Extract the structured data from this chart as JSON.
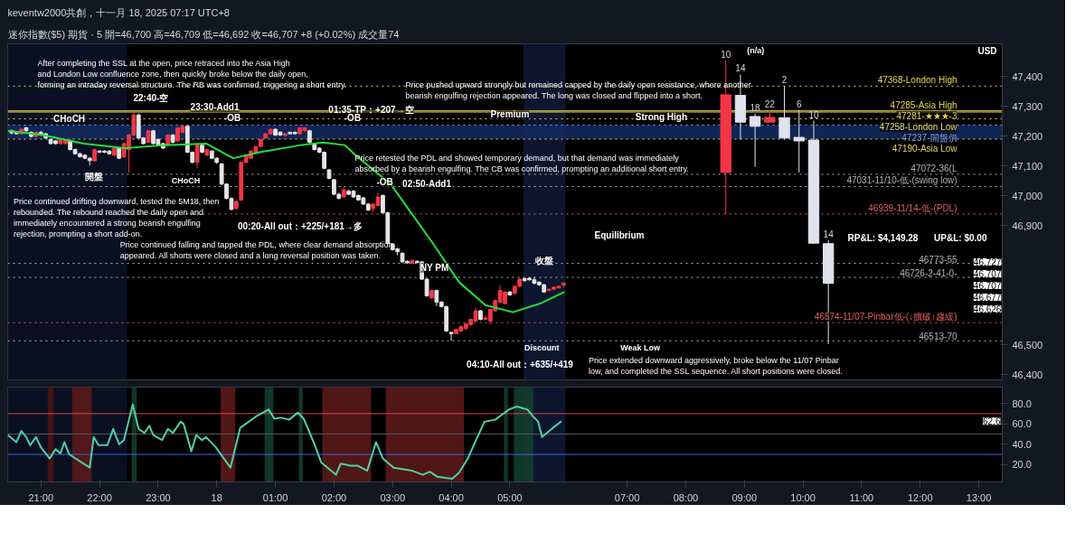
{
  "chart_data": [
    {
      "type": "candlestick",
      "title": "keventw2000共創，十一月 18, 2025 07:17 UTC+8",
      "subtitle": "迷你指數($5) 期貨 · 5  開=46,700 高=46,709 低=46,692 收=46,707 +8 (+0.02%) 成交量74",
      "xlim": [
        "2025-11-17T20:26",
        "2025-11-18T13:24"
      ],
      "ylim": [
        46382,
        47510
      ],
      "yticks": [
        {
          "value": 46400,
          "label": "46,400"
        },
        {
          "value": 46500,
          "label": "46,500"
        },
        {
          "value": 46900,
          "label": "46,900"
        },
        {
          "value": 47000,
          "label": "47,000"
        },
        {
          "value": 47100,
          "label": "47,100"
        },
        {
          "value": 47200,
          "label": "47,200"
        },
        {
          "value": 47300,
          "label": "47,300"
        },
        {
          "value": 47400,
          "label": "47,400"
        }
      ],
      "tick_labels": "y",
      "series": [
        {
          "type": "candlestick",
          "colors": [
            "#e6e6e6",
            "#e6e6e6",
            "#f23645",
            "#e6e6e6",
            "#e6e6e6",
            "#f23645",
            "#e6e6e6",
            "#e6e6e6",
            "#e6e6e6",
            "#e6e6e6",
            "#f23645",
            "#f23645",
            "#e6e6e6",
            "#e6e6e6",
            "#e6e6e6",
            "#e6e6e6",
            "#e6e6e6",
            "#f23645",
            "#e6e6e6",
            "#e6e6e6",
            "#e6e6e6",
            "#f23645",
            "#e6e6e6",
            "#f23645",
            "#f23645",
            "#f23645",
            "#e6e6e6",
            "#e6e6e6",
            "#f23645",
            "#e6e6e6",
            "#e6e6e6",
            "#e6e6e6",
            "#f23645",
            "#e6e6e6",
            "#f23645",
            "#f23645",
            "#e6e6e6",
            "#e6e6e6",
            "#f23645",
            "#e6e6e6",
            "#f23645",
            "#e6e6e6",
            "#e6e6e6",
            "#e6e6e6",
            "#e6e6e6",
            "#e6e6e6",
            "#f23645",
            "#f23645",
            "#f23645",
            "#f23645",
            "#f23645",
            "#f23645",
            "#f23645",
            "#f23645",
            "#e6e6e6",
            "#e6e6e6",
            "#f23645",
            "#e6e6e6",
            "#e6e6e6",
            "#f23645",
            "#f23645",
            "#e6e6e6",
            "#e6e6e6",
            "#e6e6e6",
            "#e6e6e6",
            "#e6e6e6",
            "#e6e6e6",
            "#e6e6e6",
            "#f23645",
            "#e6e6e6",
            "#e6e6e6",
            "#e6e6e6",
            "#e6e6e6",
            "#e6e6e6",
            "#f23645",
            "#f23645",
            "#e6e6e6",
            "#e6e6e6",
            "#e6e6e6",
            "#e6e6e6",
            "#e6e6e6",
            "#e6e6e6",
            "#f23645",
            "#e6e6e6",
            "#e6e6e6",
            "#e6e6e6",
            "#f23645",
            "#e6e6e6",
            "#e6e6e6",
            "#e6e6e6",
            "#e6e6e6",
            "#f23645",
            "#f23645",
            "#f23645",
            "#f23645",
            "#f23645",
            "#e6e6e6",
            "#f23645",
            "#f23645",
            "#f23645",
            "#f23645",
            "#f23645",
            "#e6e6e6",
            "#f23645",
            "#f23645",
            "#e6e6e6",
            "#e6e6e6",
            "#e6e6e6",
            "#e6e6e6",
            "#e6e6e6",
            "#f23645",
            "#f23645",
            "#f23645",
            "#f23645"
          ],
          "x": [
            "2025-11-17T20:30",
            "2025-11-17T20:35",
            "2025-11-17T20:40",
            "2025-11-17T20:45",
            "2025-11-17T20:50",
            "2025-11-17T20:55",
            "2025-11-17T21:00",
            "2025-11-17T21:05",
            "2025-11-17T21:10",
            "2025-11-17T21:15",
            "2025-11-17T21:20",
            "2025-11-17T21:25",
            "2025-11-17T21:30",
            "2025-11-17T21:35",
            "2025-11-17T21:40",
            "2025-11-17T21:45",
            "2025-11-17T21:50",
            "2025-11-17T21:55",
            "2025-11-17T22:00",
            "2025-11-17T22:05",
            "2025-11-17T22:10",
            "2025-11-17T22:15",
            "2025-11-17T22:20",
            "2025-11-17T22:25",
            "2025-11-17T22:30",
            "2025-11-17T22:35",
            "2025-11-17T22:40",
            "2025-11-17T22:45",
            "2025-11-17T22:50",
            "2025-11-17T22:55",
            "2025-11-17T23:00",
            "2025-11-17T23:05",
            "2025-11-17T23:10",
            "2025-11-17T23:15",
            "2025-11-17T23:20",
            "2025-11-17T23:25",
            "2025-11-17T23:30",
            "2025-11-17T23:35",
            "2025-11-17T23:40",
            "2025-11-17T23:45",
            "2025-11-17T23:50",
            "2025-11-17T23:55",
            "2025-11-18T00:00",
            "2025-11-18T00:05",
            "2025-11-18T00:10",
            "2025-11-18T00:15",
            "2025-11-18T00:20",
            "2025-11-18T00:25",
            "2025-11-18T00:30",
            "2025-11-18T00:35",
            "2025-11-18T00:40",
            "2025-11-18T00:45",
            "2025-11-18T00:50",
            "2025-11-18T00:55",
            "2025-11-18T01:00",
            "2025-11-18T01:05",
            "2025-11-18T01:10",
            "2025-11-18T01:15",
            "2025-11-18T01:20",
            "2025-11-18T01:25",
            "2025-11-18T01:30",
            "2025-11-18T01:35",
            "2025-11-18T01:40",
            "2025-11-18T01:45",
            "2025-11-18T01:50",
            "2025-11-18T01:55",
            "2025-11-18T02:00",
            "2025-11-18T02:05",
            "2025-11-18T02:10",
            "2025-11-18T02:15",
            "2025-11-18T02:20",
            "2025-11-18T02:25",
            "2025-11-18T02:30",
            "2025-11-18T02:35",
            "2025-11-18T02:40",
            "2025-11-18T02:45",
            "2025-11-18T02:50",
            "2025-11-18T02:55",
            "2025-11-18T03:00",
            "2025-11-18T03:05",
            "2025-11-18T03:10",
            "2025-11-18T03:15",
            "2025-11-18T03:20",
            "2025-11-18T03:25",
            "2025-11-18T03:30",
            "2025-11-18T03:35",
            "2025-11-18T03:40",
            "2025-11-18T03:45",
            "2025-11-18T03:50",
            "2025-11-18T03:55",
            "2025-11-18T04:00",
            "2025-11-18T04:05",
            "2025-11-18T04:10",
            "2025-11-18T04:15",
            "2025-11-18T04:20",
            "2025-11-18T04:25",
            "2025-11-18T04:30",
            "2025-11-18T04:35",
            "2025-11-18T04:40",
            "2025-11-18T04:45",
            "2025-11-18T04:50",
            "2025-11-18T04:55",
            "2025-11-18T05:00",
            "2025-11-18T05:05",
            "2025-11-18T05:10",
            "2025-11-18T05:15",
            "2025-11-18T05:20",
            "2025-11-18T05:25",
            "2025-11-18T05:30",
            "2025-11-18T05:35",
            "2025-11-18T05:40",
            "2025-11-18T05:45",
            "2025-11-18T05:50",
            "2025-11-18T05:55"
          ],
          "ohlc": [
            [
              47218,
              47223,
              47206,
              47211
            ],
            [
              47213,
              47216,
              47205,
              47208
            ],
            [
              47208,
              47226,
              47205,
              47223
            ],
            [
              47228,
              47231,
              47215,
              47218
            ],
            [
              47213,
              47216,
              47196,
              47199
            ],
            [
              47199,
              47216,
              47196,
              47213
            ],
            [
              47213,
              47218,
              47201,
              47204
            ],
            [
              47208,
              47211,
              47191,
              47194
            ],
            [
              47189,
              47192,
              47172,
              47175
            ],
            [
              47184,
              47187,
              47172,
              47175
            ],
            [
              47175,
              47192,
              47172,
              47189
            ],
            [
              47175,
              47189,
              47172,
              47186
            ],
            [
              47186,
              47189,
              47152,
              47155
            ],
            [
              47155,
              47158,
              47138,
              47141
            ],
            [
              47141,
              47144,
              47128,
              47131
            ],
            [
              47136,
              47139,
              47123,
              47126
            ],
            [
              47126,
              47129,
              47102,
              47118
            ],
            [
              47117,
              47158,
              47114,
              47155
            ],
            [
              47150,
              47153,
              47143,
              47146
            ],
            [
              47150,
              47153,
              47143,
              47146
            ],
            [
              47150,
              47153,
              47138,
              47141
            ],
            [
              47136,
              47163,
              47133,
              47160
            ],
            [
              47160,
              47163,
              47123,
              47126
            ],
            [
              47131,
              47178,
              47128,
              47175
            ],
            [
              47155,
              47207,
              47078,
              47204
            ],
            [
              47204,
              47281,
              47201,
              47271
            ],
            [
              47271,
              47276,
              47191,
              47194
            ],
            [
              47194,
              47197,
              47172,
              47175
            ],
            [
              47179,
              47221,
              47176,
              47218
            ],
            [
              47218,
              47221,
              47172,
              47175
            ],
            [
              47189,
              47192,
              47167,
              47170
            ],
            [
              47175,
              47178,
              47157,
              47160
            ],
            [
              47170,
              47207,
              47167,
              47204
            ],
            [
              47204,
              47207,
              47176,
              47179
            ],
            [
              47184,
              47231,
              47181,
              47228
            ],
            [
              47213,
              47236,
              47210,
              47233
            ],
            [
              47233,
              47236,
              47143,
              47146
            ],
            [
              47146,
              47149,
              47109,
              47112
            ],
            [
              47112,
              47173,
              47092,
              47170
            ],
            [
              47170,
              47173,
              47143,
              47146
            ],
            [
              47136,
              47158,
              47133,
              47155
            ],
            [
              47150,
              47153,
              47123,
              47126
            ],
            [
              47126,
              47129,
              47107,
              47112
            ],
            [
              47107,
              47110,
              47036,
              47039
            ],
            [
              47039,
              47042,
              46988,
              46991
            ],
            [
              46991,
              46994,
              46951,
              46954
            ],
            [
              46957,
              46984,
              46954,
              46981
            ],
            [
              46986,
              47115,
              46983,
              47112
            ],
            [
              47112,
              47139,
              47109,
              47136
            ],
            [
              47126,
              47153,
              47123,
              47150
            ],
            [
              47146,
              47168,
              47143,
              47165
            ],
            [
              47165,
              47192,
              47162,
              47189
            ],
            [
              47194,
              47211,
              47191,
              47208
            ],
            [
              47208,
              47226,
              47205,
              47223
            ],
            [
              47223,
              47226,
              47201,
              47204
            ],
            [
              47213,
              47216,
              47201,
              47204
            ],
            [
              47202,
              47211,
              47199,
              47208
            ],
            [
              47213,
              47216,
              47205,
              47208
            ],
            [
              47213,
              47216,
              47205,
              47208
            ],
            [
              47208,
              47231,
              47205,
              47228
            ],
            [
              47218,
              47231,
              47215,
              47228
            ],
            [
              47218,
              47221,
              47176,
              47179
            ],
            [
              47175,
              47178,
              47152,
              47155
            ],
            [
              47160,
              47163,
              47143,
              47146
            ],
            [
              47146,
              47149,
              47089,
              47092
            ],
            [
              47087,
              47090,
              47055,
              47058
            ],
            [
              47054,
              47057,
              47002,
              47005
            ],
            [
              47005,
              47010,
              46988,
              46991
            ],
            [
              46996,
              47030,
              46993,
              47020
            ],
            [
              47015,
              47020,
              47002,
              47005
            ],
            [
              47015,
              47020,
              46993,
              46996
            ],
            [
              47001,
              47004,
              46983,
              46986
            ],
            [
              46993,
              46996,
              46969,
              46972
            ],
            [
              46972,
              46975,
              46949,
              46952
            ],
            [
              46957,
              46975,
              46945,
              46972
            ],
            [
              46967,
              47010,
              46964,
              46996
            ],
            [
              47001,
              47004,
              46940,
              46943
            ],
            [
              46943,
              46946,
              46838,
              46841
            ],
            [
              46838,
              46841,
              46816,
              46819
            ],
            [
              46822,
              46825,
              46800,
              46812
            ],
            [
              46807,
              46810,
              46775,
              46778
            ],
            [
              46780,
              46783,
              46772,
              46775
            ],
            [
              46773,
              46786,
              46770,
              46783
            ],
            [
              46780,
              46783,
              46773,
              46776
            ],
            [
              46778,
              46781,
              46717,
              46720
            ],
            [
              46720,
              46723,
              46661,
              46664
            ],
            [
              46657,
              46685,
              46654,
              46682
            ],
            [
              46682,
              46685,
              46630,
              46643
            ],
            [
              46643,
              46646,
              46625,
              46628
            ],
            [
              46628,
              46631,
              46543,
              46546
            ],
            [
              46541,
              46544,
              46513,
              46537
            ],
            [
              46537,
              46554,
              46534,
              46551
            ],
            [
              46546,
              46564,
              46543,
              46561
            ],
            [
              46554,
              46573,
              46551,
              46570
            ],
            [
              46567,
              46588,
              46564,
              46585
            ],
            [
              46580,
              46625,
              46577,
              46614
            ],
            [
              46614,
              46617,
              46582,
              46585
            ],
            [
              46585,
              46598,
              46582,
              46590
            ],
            [
              46580,
              46622,
              46570,
              46619
            ],
            [
              46614,
              46651,
              46611,
              46648
            ],
            [
              46643,
              46700,
              46640,
              46682
            ],
            [
              46638,
              46680,
              46635,
              46677
            ],
            [
              46677,
              46680,
              46664,
              46667
            ],
            [
              46672,
              46699,
              46669,
              46696
            ],
            [
              46696,
              46723,
              46693,
              46720
            ],
            [
              46722,
              46725,
              46712,
              46715
            ],
            [
              46723,
              46726,
              46715,
              46718
            ],
            [
              46718,
              46727,
              46703,
              46706
            ],
            [
              46710,
              46713,
              46698,
              46701
            ],
            [
              46701,
              46704,
              46674,
              46677
            ],
            [
              46682,
              46689,
              46679,
              46686
            ],
            [
              46686,
              46696,
              46683,
              46693
            ],
            [
              46691,
              46699,
              46688,
              46696
            ],
            [
              46700,
              46709,
              46692,
              46707
            ]
          ]
        },
        {
          "type": "candlestick",
          "colors": [
            "#f23645",
            "#dfe3ee",
            "#dfe3ee",
            "#f23645",
            "#dfe3ee",
            "#dfe3ee",
            "#dfe3ee",
            "#dfe3ee"
          ],
          "x": [
            "2025-11-18T08:41",
            "2025-11-18T08:56",
            "2025-11-18T09:11",
            "2025-11-18T09:26",
            "2025-11-18T09:41",
            "2025-11-18T09:56",
            "2025-11-18T10:11",
            "2025-11-18T10:26"
          ],
          "ohlc": [
            [
              47078,
              47455,
              46938,
              47339
            ],
            [
              47337,
              47407,
              47189,
              47247
            ],
            [
              47266,
              47275,
              47097,
              47233
            ],
            [
              47247,
              47286,
              47247,
              47263
            ],
            [
              47262,
              47368,
              47189,
              47194
            ],
            [
              47196,
              47286,
              47078,
              47184
            ],
            [
              47187,
              47252,
              46838,
              46841
            ],
            [
              46839,
              46851,
              46502,
              46706
            ]
          ],
          "value_labels": [
            "10",
            "14",
            "18",
            "22",
            "2",
            "6",
            "10",
            "14"
          ]
        },
        {
          "type": "line",
          "color": "#22e03a",
          "x": [
            "2025-11-17T20:26",
            "2025-11-17T21:02",
            "2025-11-17T21:44",
            "2025-11-17T22:26",
            "2025-11-17T23:07",
            "2025-11-17T23:49",
            "2025-11-18T00:17",
            "2025-11-18T00:44",
            "2025-11-18T01:26",
            "2025-11-18T01:49",
            "2025-11-18T02:11",
            "2025-11-18T02:22",
            "2025-11-18T02:58",
            "2025-11-18T03:40",
            "2025-11-18T04:08",
            "2025-11-18T04:35",
            "2025-11-18T05:03",
            "2025-11-18T05:31",
            "2025-11-18T05:56"
          ],
          "values": [
            47218,
            47204,
            47175,
            47160,
            47170,
            47175,
            47126,
            47146,
            47170,
            47179,
            47170,
            47136,
            47039,
            46846,
            46710,
            46633,
            46609,
            46638,
            46677
          ]
        }
      ],
      "bands": [
        {
          "axis": "x",
          "from": "2025-11-17T20:26",
          "to": "2025-11-17T22:28",
          "color": "#0b1226"
        },
        {
          "axis": "x",
          "from": "2025-11-18T05:14",
          "to": "2025-11-18T05:57",
          "color": "#0e1833"
        },
        {
          "axis": "y",
          "from": 47190,
          "to": 47237,
          "color": "#13295e"
        }
      ],
      "ref_lines": [
        {
          "axis": "y",
          "value": 47368,
          "label": "47368-London High",
          "color": "#e8d44d",
          "line_style": "dotted"
        },
        {
          "axis": "y",
          "value": 47285,
          "label": "47285-Asia High",
          "color": "#e8d44d",
          "line_style": "solid"
        },
        {
          "axis": "y",
          "value": 47281,
          "label": "47281-★★★-3",
          "color": "#e8d44d",
          "line_style": "solid"
        },
        {
          "axis": "y",
          "value": 47258,
          "label": "47258-London Low",
          "color": "#e8d44d",
          "line_style": "dotted"
        },
        {
          "axis": "y",
          "value": 47237,
          "label": "47237-開盤價",
          "color": "#7fa6ff",
          "line_style": "dotted"
        },
        {
          "axis": "y",
          "value": 47190,
          "label": "47190-Asia Low",
          "color": "#e8d44d",
          "line_style": "dotted"
        },
        {
          "axis": "y",
          "value": 47072,
          "label": "47072-36(L",
          "color": "#b0b4bc",
          "line_style": "dotted"
        },
        {
          "axis": "y",
          "value": 47031,
          "label": "47031-11/10-低-(swing low)",
          "color": "#b0b4bc",
          "line_style": "dotted"
        },
        {
          "axis": "y",
          "value": 46939,
          "label": "46939-11/14-低-(PDL)",
          "color": "#e0605c",
          "line_style": "dotted"
        },
        {
          "axis": "y",
          "value": 46773,
          "label": "46773-55",
          "color": "#b0b4bc",
          "line_style": "dotted"
        },
        {
          "axis": "y",
          "value": 46726,
          "label": "46726-2-41-0-",
          "color": "#b0b4bc",
          "line_style": "dotted"
        },
        {
          "axis": "y",
          "value": 46574,
          "label": "46574-11/07-Pinbar低-(↓擴破↑趨緩)",
          "color": "#e0605c",
          "line_style": "dotted"
        },
        {
          "axis": "y",
          "value": 46513,
          "label": "46513-70",
          "color": "#b0b4bc",
          "line_style": "dotted"
        }
      ],
      "annotations": [
        "After completing the SSL at the open, price retraced into the Asia High\nand London Low confluence zone, then quickly broke below the daily open,\nforming an intraday reversal structure. The RB was confirmed, triggering a short entry.",
        "Price pushed upward strongly but remained capped by the daily open resistance, where another\nbearish engulfing rejection appeared. The long was closed and flipped into a short.",
        "Price retested the PDL and showed temporary demand, but that demand was immediately\nabsorbed by a bearish engulfing. The CB was confirmed, prompting an additional short entry.",
        "Price continued drifting downward, tested the 5M18, then\nrebounded. The rebound reached the daily open and\nimmediately encountered a strong bearish engulfing\nrejection, prompting a short add-on.",
        "Price continued falling and tapped the PDL, where clear demand absorption\nappeared. All shorts were closed and a long reversal position was taken.",
        "Price extended downward aggressively, broke below the 11/07 Pinbar\nlow, and completed the SSL sequence. All short positions were closed.",
        "22:40-空",
        {
          "text": "23:30-Add1",
          "x": "2025-11-17T23:58",
          "y": 47298
        },
        {
          "text": "01:35-TP：+207→空",
          "x": "2025-11-18T02:38",
          "y": 47290
        },
        {
          "text": "02:50-Add1",
          "x": "2025-11-18T03:35",
          "y": 47040
        },
        "00:20-All out：+225/+181→多",
        "04:10-All out：+635/+419",
        {
          "text": "開盤",
          "x": "2025-11-17T21:54",
          "y": 47064
        },
        {
          "text": "收盤",
          "x": "2025-11-18T05:35",
          "y": 46782
        },
        {
          "text": "CHoCH",
          "x": "2025-11-17T21:29",
          "y": 47258
        },
        "CHoCH",
        {
          "text": "-OB",
          "x": "2025-11-18T00:16",
          "y": 47261
        },
        {
          "text": "-OB",
          "x": "2025-11-18T02:19",
          "y": 47261
        },
        {
          "text": "-OB",
          "x": "2025-11-18T02:52",
          "y": 47046
        },
        {
          "text": "Premium",
          "x": "2025-11-18T05:00",
          "y": 47272
        },
        {
          "text": "Strong High",
          "x": "2025-11-18T07:35",
          "y": 47264
        },
        "Equilibrium",
        "Discount",
        "Weak Low",
        {
          "text": "NY PM",
          "x": "2025-11-18T03:43",
          "y": 46759
        },
        "(n/a)",
        "RP&L: $4,149.28",
        "UP&L: $0.00",
        "USD",
        "46,727",
        "46,707",
        "46,707",
        "46,677",
        "46,626"
      ]
    },
    {
      "type": "line",
      "xlim": [
        "2025-11-17T20:26",
        "2025-11-18T13:24"
      ],
      "ylim": [
        3,
        96
      ],
      "xticks": [
        {
          "value": "2025-11-17T21:00",
          "label": "21:00"
        },
        {
          "value": "2025-11-17T22:00",
          "label": "22:00"
        },
        {
          "value": "2025-11-17T23:00",
          "label": "23:00"
        },
        {
          "value": "2025-11-18T00:00",
          "label": "18"
        },
        {
          "value": "2025-11-18T01:00",
          "label": "01:00"
        },
        {
          "value": "2025-11-18T02:00",
          "label": "02:00"
        },
        {
          "value": "2025-11-18T03:00",
          "label": "03:00"
        },
        {
          "value": "2025-11-18T04:00",
          "label": "04:00"
        },
        {
          "value": "2025-11-18T05:00",
          "label": "05:00"
        },
        {
          "value": "2025-11-18T07:00",
          "label": "07:00"
        },
        {
          "value": "2025-11-18T08:00",
          "label": "08:00"
        },
        {
          "value": "2025-11-18T09:00",
          "label": "09:00"
        },
        {
          "value": "2025-11-18T10:00",
          "label": "10:00"
        },
        {
          "value": "2025-11-18T11:00",
          "label": "11:00"
        },
        {
          "value": "2025-11-18T12:00",
          "label": "12:00"
        },
        {
          "value": "2025-11-18T13:00",
          "label": "13:00"
        }
      ],
      "yticks": [
        {
          "value": 20,
          "label": "20.0"
        },
        {
          "value": 40,
          "label": "40.0"
        },
        {
          "value": 60,
          "label": "60.0"
        },
        {
          "value": 80,
          "label": "80.0"
        }
      ],
      "x": [
        "2025-11-17T20:26",
        "2025-11-17T20:35",
        "2025-11-17T20:40",
        "2025-11-17T20:45",
        "2025-11-17T20:49",
        "2025-11-17T20:55",
        "2025-11-17T21:00",
        "2025-11-17T21:09",
        "2025-11-17T21:15",
        "2025-11-17T21:20",
        "2025-11-17T21:24",
        "2025-11-17T21:29",
        "2025-11-17T21:50",
        "2025-11-17T21:54",
        "2025-11-17T21:59",
        "2025-11-17T22:08",
        "2025-11-17T22:14",
        "2025-11-17T22:20",
        "2025-11-17T22:25",
        "2025-11-17T22:34",
        "2025-11-17T22:40",
        "2025-11-17T22:46",
        "2025-11-17T22:51",
        "2025-11-17T22:55",
        "2025-11-17T23:04",
        "2025-11-17T23:10",
        "2025-11-17T23:15",
        "2025-11-17T23:23",
        "2025-11-17T23:26",
        "2025-11-17T23:34",
        "2025-11-17T23:39",
        "2025-11-17T23:45",
        "2025-11-17T23:49",
        "2025-11-17T23:59",
        "2025-11-18T00:14",
        "2025-11-18T00:24",
        "2025-11-18T00:40",
        "2025-11-18T00:53",
        "2025-11-18T00:59",
        "2025-11-18T01:06",
        "2025-11-18T01:14",
        "2025-11-18T01:23",
        "2025-11-18T01:29",
        "2025-11-18T01:40",
        "2025-11-18T01:47",
        "2025-11-18T02:02",
        "2025-11-18T02:07",
        "2025-11-18T02:17",
        "2025-11-18T02:24",
        "2025-11-18T02:34",
        "2025-11-18T02:43",
        "2025-11-18T02:50",
        "2025-11-18T03:01",
        "2025-11-18T03:20",
        "2025-11-18T03:31",
        "2025-11-18T03:38",
        "2025-11-18T03:46",
        "2025-11-18T04:01",
        "2025-11-18T04:08",
        "2025-11-18T04:17",
        "2025-11-18T04:23",
        "2025-11-18T04:34",
        "2025-11-18T04:45",
        "2025-11-18T04:52",
        "2025-11-18T04:59",
        "2025-11-18T05:07",
        "2025-11-18T05:18",
        "2025-11-18T05:24",
        "2025-11-18T05:29",
        "2025-11-18T05:33",
        "2025-11-18T05:44",
        "2025-11-18T05:53"
      ],
      "series": [
        {
          "color": "#4fd1a5",
          "values": [
            49,
            42,
            53,
            47,
            39,
            47,
            37,
            26,
            35,
            31,
            42,
            30,
            17,
            47,
            39,
            39,
            55,
            40,
            44,
            79,
            55,
            51,
            58,
            49,
            44,
            55,
            51,
            62,
            60,
            33,
            49,
            44,
            47,
            37,
            17,
            56,
            67,
            74,
            65,
            66,
            64,
            71,
            65,
            40,
            22,
            10,
            21,
            19,
            19,
            14,
            42,
            26,
            17,
            14,
            10,
            13,
            8,
            6,
            12,
            26,
            39,
            62,
            64,
            69,
            74,
            77,
            74,
            67,
            62,
            47,
            56,
            62.6
          ]
        }
      ],
      "bands": [
        {
          "axis": "x",
          "from": "2025-11-17T20:26",
          "to": "2025-11-17T22:28",
          "color": "#0b1226"
        },
        {
          "axis": "x",
          "from": "2025-11-18T05:14",
          "to": "2025-11-18T05:57",
          "color": "#0e1833"
        },
        {
          "axis": "x",
          "from": "2025-11-17T21:07",
          "to": "2025-11-17T21:13",
          "color": "#4a1414"
        },
        {
          "axis": "x",
          "from": "2025-11-17T21:32",
          "to": "2025-11-17T21:52",
          "color": "#5a1a1a"
        },
        {
          "axis": "x",
          "from": "2025-11-18T00:04",
          "to": "2025-11-18T00:19",
          "color": "#5a1a1a"
        },
        {
          "axis": "x",
          "from": "2025-11-18T01:48",
          "to": "2025-11-18T02:38",
          "color": "#5a1a1a"
        },
        {
          "axis": "x",
          "from": "2025-11-18T02:53",
          "to": "2025-11-18T04:13",
          "color": "#5a1a1a"
        },
        {
          "axis": "x",
          "from": "2025-11-17T22:33",
          "to": "2025-11-17T22:38",
          "color": "#123d2e"
        },
        {
          "axis": "x",
          "from": "2025-11-18T00:49",
          "to": "2025-11-18T00:58",
          "color": "#123d2e"
        },
        {
          "axis": "x",
          "from": "2025-11-18T01:24",
          "to": "2025-11-18T01:28",
          "color": "#123d2e"
        },
        {
          "axis": "x",
          "from": "2025-11-18T04:54",
          "to": "2025-11-18T04:58",
          "color": "#123d2e"
        },
        {
          "axis": "x",
          "from": "2025-11-18T05:04",
          "to": "2025-11-18T05:24",
          "color": "#123d2e"
        }
      ],
      "ref_lines": [
        {
          "axis": "y",
          "value": 70,
          "color": "#e0404a",
          "line_style": "solid"
        },
        {
          "axis": "y",
          "value": 50,
          "color": "#555a63",
          "line_style": "solid"
        },
        {
          "axis": "y",
          "value": 30,
          "color": "#3f5fe0",
          "line_style": "solid"
        }
      ],
      "annotations": [
        {
          "text": "62.6",
          "y": 62.6
        }
      ]
    }
  ]
}
